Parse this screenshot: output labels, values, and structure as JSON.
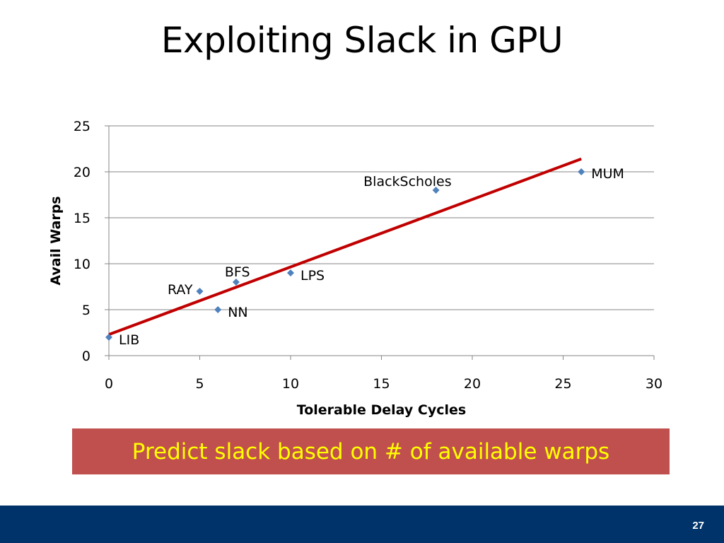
{
  "slide": {
    "title": "Exploiting Slack in GPU",
    "callout": "Predict slack based on # of available warps",
    "page_number": "27"
  },
  "colors": {
    "point": "#4f81bd",
    "trendline": "#c00000",
    "callout_bg": "#c0504d",
    "callout_text": "#ffff00",
    "footer_bg": "#00336a"
  },
  "chart_data": {
    "type": "scatter",
    "xlabel": "Tolerable Delay Cycles",
    "ylabel": "Avail Warps",
    "xlim": [
      0,
      30
    ],
    "ylim": [
      0,
      25
    ],
    "x_ticks": [
      "0",
      "5",
      "10",
      "15",
      "20",
      "25",
      "30"
    ],
    "y_ticks": [
      "0",
      "5",
      "10",
      "15",
      "20",
      "25"
    ],
    "grid": "horizontal",
    "legend": "none",
    "points": [
      {
        "label": "LIB",
        "x": 0,
        "y": 2
      },
      {
        "label": "RAY",
        "x": 5,
        "y": 7
      },
      {
        "label": "NN",
        "x": 6,
        "y": 5
      },
      {
        "label": "BFS",
        "x": 7,
        "y": 8
      },
      {
        "label": "LPS",
        "x": 10,
        "y": 9
      },
      {
        "label": "BlackScholes",
        "x": 18,
        "y": 18
      },
      {
        "label": "MUM",
        "x": 26,
        "y": 20
      }
    ],
    "trendline": {
      "type": "linear",
      "x": [
        0,
        26
      ],
      "y": [
        2.3,
        21.4
      ]
    }
  }
}
